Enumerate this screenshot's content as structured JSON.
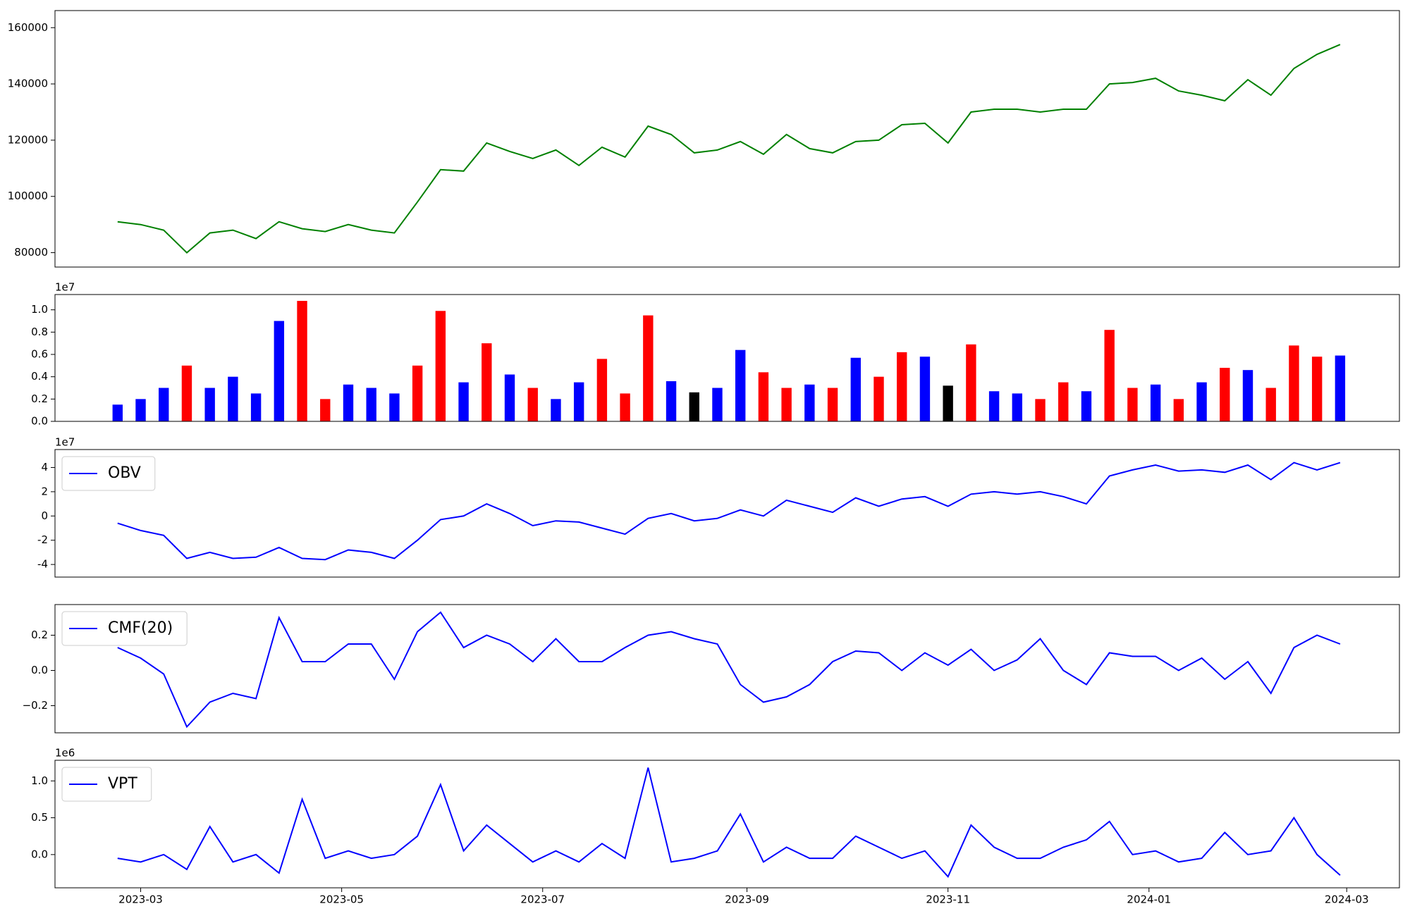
{
  "chart_data": [
    {
      "type": "line",
      "series": [
        {
          "color": "#008000",
          "values": [
            91000,
            90000,
            88000,
            80000,
            87000,
            88000,
            85000,
            91000,
            88500,
            87500,
            90000,
            88000,
            87000,
            98000,
            109500,
            109000,
            119000,
            116000,
            113500,
            116500,
            111000,
            117500,
            114000,
            125000,
            122000,
            115500,
            116500,
            119500,
            115000,
            122000,
            117000,
            115500,
            119500,
            120000,
            125500,
            126000,
            119000,
            130000,
            131000,
            131000,
            130000,
            131000,
            131000,
            140000,
            140500,
            142000,
            137500,
            136000,
            134000,
            141500,
            136000,
            145500,
            150500,
            154000
          ]
        }
      ],
      "ylim": [
        74880,
        166080
      ],
      "yticks": [
        80000,
        100000,
        120000,
        140000,
        160000
      ]
    },
    {
      "type": "bar",
      "values": [
        0.15,
        0.2,
        0.3,
        0.5,
        0.3,
        0.4,
        0.25,
        0.9,
        1.08,
        0.2,
        0.33,
        0.3,
        0.25,
        0.5,
        0.99,
        0.35,
        0.7,
        0.42,
        0.3,
        0.2,
        0.35,
        0.56,
        0.25,
        0.95,
        0.36,
        0.26,
        0.3,
        0.64,
        0.44,
        0.3,
        0.33,
        0.3,
        0.57,
        0.4,
        0.62,
        0.58,
        0.32,
        0.69,
        0.27,
        0.25,
        0.2,
        0.35,
        0.27,
        0.82,
        0.3,
        0.33,
        0.2,
        0.35,
        0.48,
        0.46,
        0.3,
        0.68,
        0.58,
        0.59
      ],
      "colors": [
        "#0000ff",
        "#0000ff",
        "#0000ff",
        "#ff0000",
        "#0000ff",
        "#0000ff",
        "#0000ff",
        "#0000ff",
        "#ff0000",
        "#ff0000",
        "#0000ff",
        "#0000ff",
        "#0000ff",
        "#ff0000",
        "#ff0000",
        "#0000ff",
        "#ff0000",
        "#0000ff",
        "#ff0000",
        "#0000ff",
        "#0000ff",
        "#ff0000",
        "#ff0000",
        "#ff0000",
        "#0000ff",
        "#000000",
        "#0000ff",
        "#0000ff",
        "#ff0000",
        "#ff0000",
        "#0000ff",
        "#ff0000",
        "#0000ff",
        "#ff0000",
        "#ff0000",
        "#0000ff",
        "#000000",
        "#ff0000",
        "#0000ff",
        "#0000ff",
        "#ff0000",
        "#ff0000",
        "#0000ff",
        "#ff0000",
        "#ff0000",
        "#0000ff",
        "#ff0000",
        "#0000ff",
        "#ff0000",
        "#0000ff",
        "#ff0000",
        "#ff0000",
        "#ff0000",
        "#0000ff"
      ],
      "ylim": [
        0,
        1.137
      ],
      "yticks": [
        {
          "value": 0,
          "label": "0.0"
        },
        0.2,
        0.4,
        0.6,
        0.8,
        {
          "value": 1,
          "label": "1.0"
        }
      ],
      "offset_label": "1e7"
    },
    {
      "type": "line",
      "series": [
        {
          "name": "OBV",
          "color": "#0000ff",
          "values": [
            -0.6,
            -1.2,
            -1.6,
            -3.5,
            -3.0,
            -3.5,
            -3.4,
            -2.6,
            -3.5,
            -3.6,
            -2.8,
            -3.0,
            -3.5,
            -2.0,
            -0.3,
            0.0,
            1.0,
            0.2,
            -0.8,
            -0.4,
            -0.5,
            -1.0,
            -1.5,
            -0.2,
            0.2,
            -0.4,
            -0.2,
            0.5,
            0.0,
            1.3,
            0.8,
            0.3,
            1.5,
            0.8,
            1.4,
            1.6,
            0.8,
            1.8,
            2.0,
            1.8,
            2.0,
            1.6,
            1.0,
            3.3,
            3.8,
            4.2,
            3.7,
            3.8,
            3.6,
            4.2,
            3.0,
            4.4,
            3.8,
            4.4
          ]
        }
      ],
      "ylim": [
        -5.04,
        5.48
      ],
      "yticks": [
        -4,
        -2,
        0,
        2,
        4
      ],
      "offset_label": "1e7",
      "legend": "upper left"
    },
    {
      "type": "line",
      "series": [
        {
          "name": "CMF(20)",
          "color": "#0000ff",
          "values": [
            0.13,
            0.07,
            -0.02,
            -0.32,
            -0.18,
            -0.13,
            -0.16,
            0.3,
            0.05,
            0.05,
            0.15,
            0.15,
            -0.05,
            0.22,
            0.33,
            0.13,
            0.2,
            0.15,
            0.05,
            0.18,
            0.05,
            0.05,
            0.13,
            0.2,
            0.22,
            0.18,
            0.15,
            -0.08,
            -0.18,
            -0.15,
            -0.08,
            0.05,
            0.11,
            0.1,
            0.0,
            0.1,
            0.03,
            0.12,
            0.0,
            0.06,
            0.18,
            0.0,
            -0.08,
            0.1,
            0.08,
            0.08,
            0.0,
            0.07,
            -0.05,
            0.05,
            -0.13,
            0.13,
            0.2,
            0.15
          ]
        }
      ],
      "ylim": [
        -0.354,
        0.374
      ],
      "yticks": [
        {
          "value": -0.2,
          "label": "−0.2"
        },
        {
          "value": 0,
          "label": "0.0"
        },
        0.2
      ],
      "legend": "upper left"
    },
    {
      "type": "line",
      "series": [
        {
          "name": "VPT",
          "color": "#0000ff",
          "values": [
            -0.05,
            -0.1,
            0.0,
            -0.2,
            0.38,
            -0.1,
            0.0,
            -0.25,
            0.75,
            -0.05,
            0.05,
            -0.05,
            0.0,
            0.25,
            0.95,
            0.05,
            0.4,
            0.15,
            -0.1,
            0.05,
            -0.1,
            0.15,
            -0.05,
            1.18,
            -0.1,
            -0.05,
            0.05,
            0.55,
            -0.1,
            0.1,
            -0.05,
            -0.05,
            0.25,
            0.1,
            -0.05,
            0.05,
            -0.3,
            0.4,
            0.1,
            -0.05,
            -0.05,
            0.1,
            0.2,
            0.45,
            0.0,
            0.05,
            -0.1,
            -0.05,
            0.3,
            0.0,
            0.05,
            0.5,
            0.0,
            -0.28
          ]
        }
      ],
      "ylim": [
        -0.451,
        1.28
      ],
      "yticks": [
        {
          "value": 0,
          "label": "0.0"
        },
        0.5,
        {
          "value": 1,
          "label": "1.0"
        }
      ],
      "offset_label": "1e6",
      "legend": "upper left",
      "x": [
        "2023-02-22",
        "2023-03-01",
        "2023-03-08",
        "2023-03-15",
        "2023-03-22",
        "2023-03-29",
        "2023-04-05",
        "2023-04-12",
        "2023-04-19",
        "2023-04-26",
        "2023-05-03",
        "2023-05-10",
        "2023-05-17",
        "2023-05-24",
        "2023-05-31",
        "2023-06-07",
        "2023-06-14",
        "2023-06-21",
        "2023-06-28",
        "2023-07-05",
        "2023-07-12",
        "2023-07-19",
        "2023-07-26",
        "2023-08-02",
        "2023-08-09",
        "2023-08-16",
        "2023-08-23",
        "2023-08-30",
        "2023-09-06",
        "2023-09-13",
        "2023-09-20",
        "2023-09-27",
        "2023-10-04",
        "2023-10-11",
        "2023-10-18",
        "2023-10-25",
        "2023-11-01",
        "2023-11-08",
        "2023-11-15",
        "2023-11-22",
        "2023-11-29",
        "2023-12-06",
        "2023-12-13",
        "2023-12-20",
        "2023-12-27",
        "2024-01-03",
        "2024-01-10",
        "2024-01-17",
        "2024-01-24",
        "2024-01-31",
        "2024-02-07",
        "2024-02-14",
        "2024-02-21",
        "2024-02-28"
      ],
      "xlim": [
        "2023-02-03",
        "2024-03-17"
      ],
      "xticks": [
        {
          "value": "2023-03-01",
          "label": "2023-03"
        },
        {
          "value": "2023-05-01",
          "label": "2023-05"
        },
        {
          "value": "2023-07-01",
          "label": "2023-07"
        },
        {
          "value": "2023-09-01",
          "label": "2023-09"
        },
        {
          "value": "2023-11-01",
          "label": "2023-11"
        },
        {
          "value": "2024-01-01",
          "label": "2024-01"
        },
        {
          "value": "2024-03-01",
          "label": "2024-03"
        }
      ]
    }
  ]
}
